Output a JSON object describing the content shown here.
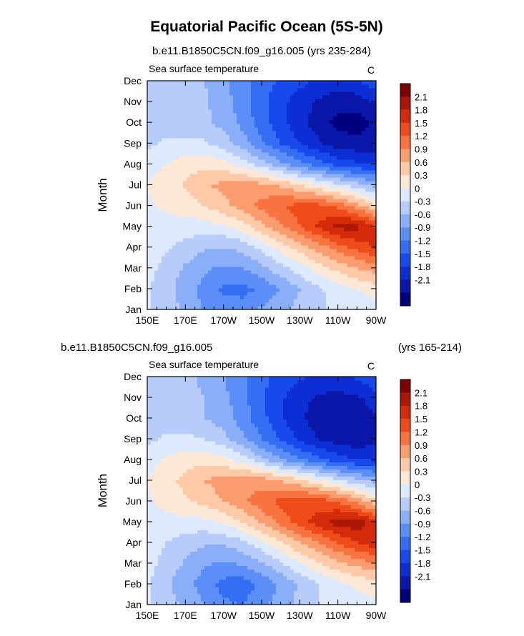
{
  "figure": {
    "title": "Equatorial Pacific Ocean (5S-5N)"
  },
  "palette": {
    "levels": [
      -2.1,
      -1.8,
      -1.5,
      -1.2,
      -0.9,
      -0.6,
      -0.3,
      0,
      0.3,
      0.6,
      0.9,
      1.2,
      1.5,
      1.8,
      2.1
    ],
    "colors": [
      "#00007e",
      "#0a17a8",
      "#0c2ed4",
      "#1749ec",
      "#346ff3",
      "#5b8ef6",
      "#8aaef8",
      "#b7ccfa",
      "#dde9fc",
      "#fde8d6",
      "#fdc9a7",
      "#fb9c6f",
      "#f77440",
      "#ef4c1b",
      "#d42c0a",
      "#ad1805",
      "#7e0000"
    ]
  },
  "chart_data": [
    {
      "type": "heatmap",
      "subtitle": "b.e11.B1850C5CN.f09_g16.005 (yrs 235-284)",
      "subtitle_right": "",
      "panel_label": "Sea surface temperature",
      "units": "C",
      "ylabel": "Month",
      "xticks": [
        "150E",
        "170E",
        "170W",
        "150W",
        "130W",
        "110W",
        "90W"
      ],
      "yticks": [
        "Jan",
        "Feb",
        "Mar",
        "Apr",
        "May",
        "Jun",
        "Jul",
        "Aug",
        "Sep",
        "Oct",
        "Nov",
        "Dec"
      ],
      "colorbar_labels": [
        "2.1",
        "1.8",
        "1.5",
        "1.2",
        "0.9",
        "0.6",
        "0.3",
        "0",
        "-0.3",
        "-0.6",
        "-0.9",
        "-1.2",
        "-1.5",
        "-1.8",
        "-2.1"
      ],
      "values": [
        [
          0.05,
          -0.15,
          -0.35,
          -0.65,
          -0.8,
          -0.75,
          -0.55,
          -0.35,
          -0.2,
          -0.05,
          0.05,
          0.1,
          0.15
        ],
        [
          0.05,
          -0.2,
          -0.45,
          -0.7,
          -0.95,
          -1.0,
          -0.85,
          -0.6,
          -0.3,
          -0.05,
          0.15,
          0.3,
          0.45
        ],
        [
          0.1,
          -0.1,
          -0.35,
          -0.55,
          -0.65,
          -0.6,
          -0.4,
          -0.1,
          0.15,
          0.45,
          0.7,
          0.9,
          1.05
        ],
        [
          0.15,
          0.05,
          -0.1,
          -0.25,
          -0.3,
          -0.2,
          0.1,
          0.4,
          0.75,
          1.05,
          1.35,
          1.6,
          1.85
        ],
        [
          0.2,
          0.2,
          0.15,
          0.15,
          0.25,
          0.45,
          0.8,
          1.15,
          1.5,
          1.85,
          2.2,
          2.2,
          1.8
        ],
        [
          0.25,
          0.35,
          0.45,
          0.6,
          0.8,
          1.05,
          1.3,
          1.5,
          1.6,
          1.6,
          1.4,
          1.05,
          0.6
        ],
        [
          0.3,
          0.45,
          0.65,
          0.85,
          1.0,
          1.05,
          1.0,
          0.85,
          0.6,
          0.35,
          0.1,
          -0.15,
          -0.4
        ],
        [
          0.15,
          0.3,
          0.45,
          0.5,
          0.4,
          0.15,
          -0.15,
          -0.5,
          -0.8,
          -1.05,
          -1.3,
          -1.45,
          -1.55
        ],
        [
          -0.05,
          0.05,
          0.1,
          0.05,
          -0.15,
          -0.45,
          -0.85,
          -1.2,
          -1.5,
          -1.75,
          -1.95,
          -2.0,
          -1.95
        ],
        [
          -0.1,
          -0.15,
          -0.2,
          -0.25,
          -0.4,
          -0.7,
          -1.05,
          -1.4,
          -1.7,
          -1.95,
          -2.2,
          -2.25,
          -2.05
        ],
        [
          -0.1,
          -0.2,
          -0.2,
          -0.25,
          -0.45,
          -0.75,
          -1.1,
          -1.4,
          -1.65,
          -1.85,
          -2.0,
          -1.95,
          -1.75
        ],
        [
          -0.05,
          -0.15,
          -0.2,
          -0.3,
          -0.55,
          -0.8,
          -1.05,
          -1.25,
          -1.4,
          -1.55,
          -1.6,
          -1.55,
          -1.3
        ]
      ]
    },
    {
      "type": "heatmap",
      "subtitle": "b.e11.B1850C5CN.f09_g16.005",
      "subtitle_right": "(yrs 165-214)",
      "panel_label": "Sea surface temperature",
      "units": "C",
      "ylabel": "Month",
      "xticks": [
        "150E",
        "170E",
        "170W",
        "150W",
        "130W",
        "110W",
        "90W"
      ],
      "yticks": [
        "Jan",
        "Feb",
        "Mar",
        "Apr",
        "May",
        "Jun",
        "Jul",
        "Aug",
        "Sep",
        "Oct",
        "Nov",
        "Dec"
      ],
      "colorbar_labels": [
        "2.1",
        "1.8",
        "1.5",
        "1.2",
        "0.9",
        "0.6",
        "0.3",
        "0",
        "-0.3",
        "-0.6",
        "-0.9",
        "-1.2",
        "-1.5",
        "-1.8",
        "-2.1"
      ],
      "values": [
        [
          0.05,
          -0.15,
          -0.35,
          -0.6,
          -0.85,
          -0.9,
          -0.7,
          -0.45,
          -0.2,
          0.0,
          0.1,
          0.15,
          0.2
        ],
        [
          0.05,
          -0.25,
          -0.5,
          -0.75,
          -1.0,
          -1.05,
          -0.85,
          -0.55,
          -0.25,
          0.0,
          0.2,
          0.35,
          0.5
        ],
        [
          0.1,
          -0.1,
          -0.35,
          -0.55,
          -0.65,
          -0.55,
          -0.35,
          -0.05,
          0.25,
          0.55,
          0.8,
          1.0,
          1.15
        ],
        [
          0.15,
          0.0,
          -0.15,
          -0.25,
          -0.25,
          -0.1,
          0.2,
          0.55,
          0.9,
          1.2,
          1.5,
          1.8,
          2.0
        ],
        [
          0.2,
          0.2,
          0.2,
          0.2,
          0.35,
          0.6,
          0.95,
          1.3,
          1.65,
          1.95,
          2.25,
          2.3,
          1.9
        ],
        [
          0.25,
          0.4,
          0.55,
          0.7,
          0.9,
          1.15,
          1.4,
          1.6,
          1.7,
          1.65,
          1.45,
          1.1,
          0.65
        ],
        [
          0.3,
          0.5,
          0.7,
          0.9,
          1.05,
          1.1,
          1.05,
          0.9,
          0.65,
          0.35,
          0.05,
          -0.2,
          -0.45
        ],
        [
          0.15,
          0.35,
          0.45,
          0.5,
          0.4,
          0.15,
          -0.2,
          -0.55,
          -0.85,
          -1.1,
          -1.35,
          -1.5,
          -1.55
        ],
        [
          -0.05,
          0.05,
          0.1,
          0.0,
          -0.2,
          -0.5,
          -0.9,
          -1.25,
          -1.55,
          -1.8,
          -1.95,
          -2.0,
          -1.9
        ],
        [
          -0.1,
          -0.15,
          -0.2,
          -0.3,
          -0.45,
          -0.75,
          -1.1,
          -1.45,
          -1.75,
          -1.95,
          -2.0,
          -2.0,
          -1.85
        ],
        [
          -0.1,
          -0.2,
          -0.2,
          -0.3,
          -0.5,
          -0.8,
          -1.15,
          -1.45,
          -1.7,
          -1.85,
          -1.9,
          -1.85,
          -1.65
        ],
        [
          -0.05,
          -0.15,
          -0.25,
          -0.35,
          -0.6,
          -0.85,
          -1.1,
          -1.3,
          -1.45,
          -1.55,
          -1.55,
          -1.45,
          -1.2
        ]
      ]
    }
  ]
}
